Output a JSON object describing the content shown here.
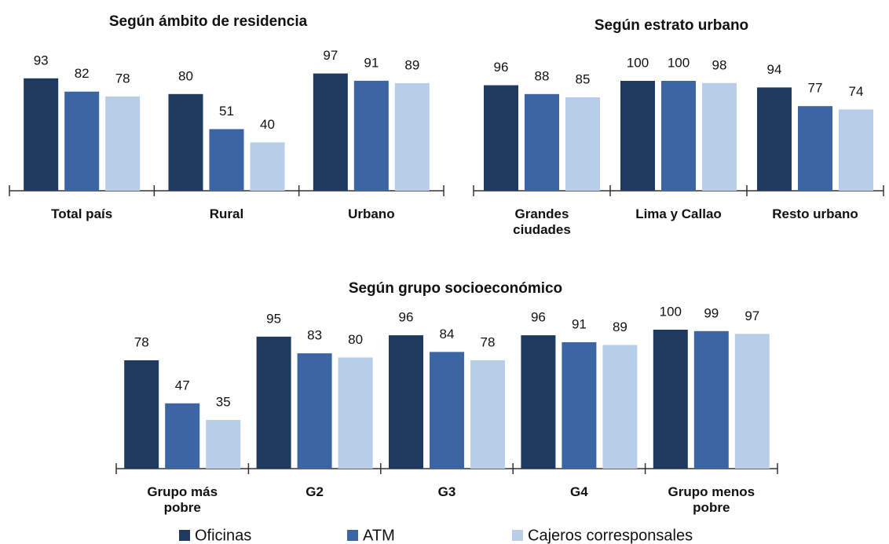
{
  "chart_data": [
    {
      "type": "bar",
      "title": "Según ámbito de residencia",
      "categories": [
        "Total país",
        "Rural",
        "Urbano"
      ],
      "series": [
        {
          "name": "Oficinas",
          "color": "#1e3a5f",
          "values": [
            93,
            80,
            97
          ]
        },
        {
          "name": "ATM",
          "color": "#3b66a3",
          "values": [
            82,
            51,
            91
          ]
        },
        {
          "name": "Cajeros corresponsales",
          "color": "#b8cee8",
          "values": [
            78,
            40,
            89
          ]
        }
      ],
      "ylim": [
        0,
        100
      ]
    },
    {
      "type": "bar",
      "title": "Según estrato urbano",
      "categories": [
        "Grandes ciudades",
        "Lima y Callao",
        "Resto urbano"
      ],
      "series": [
        {
          "name": "Oficinas",
          "color": "#1e3a5f",
          "values": [
            96,
            100,
            94
          ]
        },
        {
          "name": "ATM",
          "color": "#3b66a3",
          "values": [
            88,
            100,
            77
          ]
        },
        {
          "name": "Cajeros corresponsales",
          "color": "#b8cee8",
          "values": [
            85,
            98,
            74
          ]
        }
      ],
      "ylim": [
        0,
        100
      ]
    },
    {
      "type": "bar",
      "title": "Según grupo socioeconómico",
      "categories": [
        "Grupo más pobre",
        "G2",
        "G3",
        "G4",
        "Grupo menos pobre"
      ],
      "series": [
        {
          "name": "Oficinas",
          "color": "#1e3a5f",
          "values": [
            78,
            95,
            96,
            96,
            100
          ]
        },
        {
          "name": "ATM",
          "color": "#3b66a3",
          "values": [
            47,
            83,
            84,
            91,
            99
          ]
        },
        {
          "name": "Cajeros corresponsales",
          "color": "#b8cee8",
          "values": [
            35,
            80,
            78,
            89,
            97
          ]
        }
      ],
      "ylim": [
        0,
        100
      ]
    }
  ]
}
